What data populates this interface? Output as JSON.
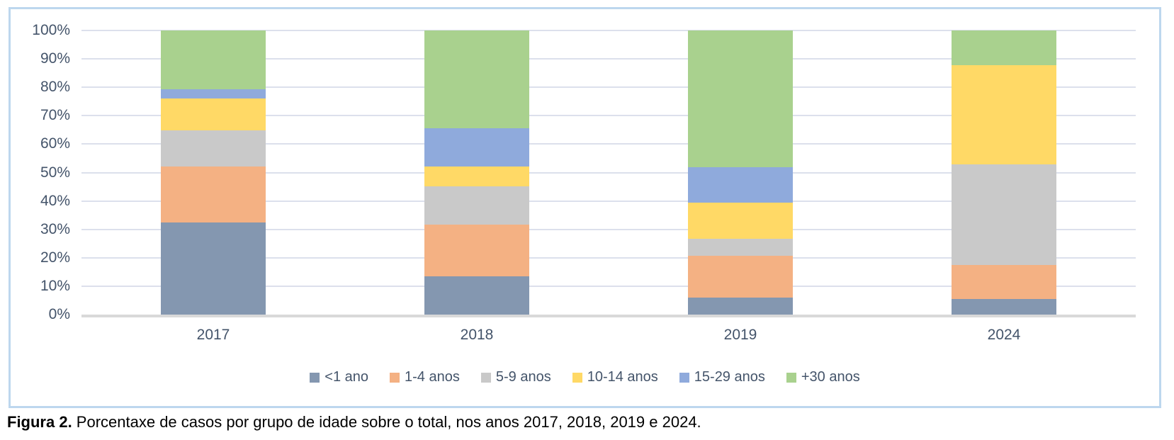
{
  "chart_data": {
    "type": "bar",
    "subtype": "stacked-100-percent",
    "title": "",
    "xlabel": "",
    "ylabel": "",
    "categories": [
      "2017",
      "2018",
      "2019",
      "2024"
    ],
    "series": [
      {
        "name": "<1 ano",
        "color": "#8497B0",
        "values": [
          32.4,
          13.4,
          6.1,
          5.6
        ]
      },
      {
        "name": "1-4 anos",
        "color": "#F4B183",
        "values": [
          19.6,
          18.4,
          14.5,
          11.9
        ]
      },
      {
        "name": "5-9 anos",
        "color": "#C9C9C9",
        "values": [
          12.8,
          13.3,
          6.2,
          35.3
        ]
      },
      {
        "name": "10-14 anos",
        "color": "#FFD966",
        "values": [
          11.3,
          7.1,
          12.5,
          35.1
        ]
      },
      {
        "name": "15-29 anos",
        "color": "#8FAADC",
        "values": [
          3.1,
          13.3,
          12.5,
          0
        ]
      },
      {
        "name": "+30 anos",
        "color": "#A9D18E",
        "values": [
          20.8,
          34.5,
          48.2,
          12.1
        ]
      }
    ],
    "ylim": [
      0,
      100
    ],
    "y_ticks_percent": [
      0,
      10,
      20,
      30,
      40,
      50,
      60,
      70,
      80,
      90,
      100
    ],
    "y_tick_labels": [
      "0%",
      "10%",
      "20%",
      "30%",
      "40%",
      "50%",
      "60%",
      "70%",
      "80%",
      "90%",
      "100%"
    ],
    "grid": true,
    "legend_position": "bottom"
  },
  "caption": {
    "prefix": "Figura 2.",
    "text": " Porcentaxe de casos por grupo de idade sobre o total, nos anos 2017, 2018, 2019 e 2024."
  },
  "colors": {
    "chart_border": "#BDD7EE",
    "gridline": "#DCE0EC",
    "axis_baseline": "#D9D9D9",
    "tick_text": "#44546A"
  }
}
